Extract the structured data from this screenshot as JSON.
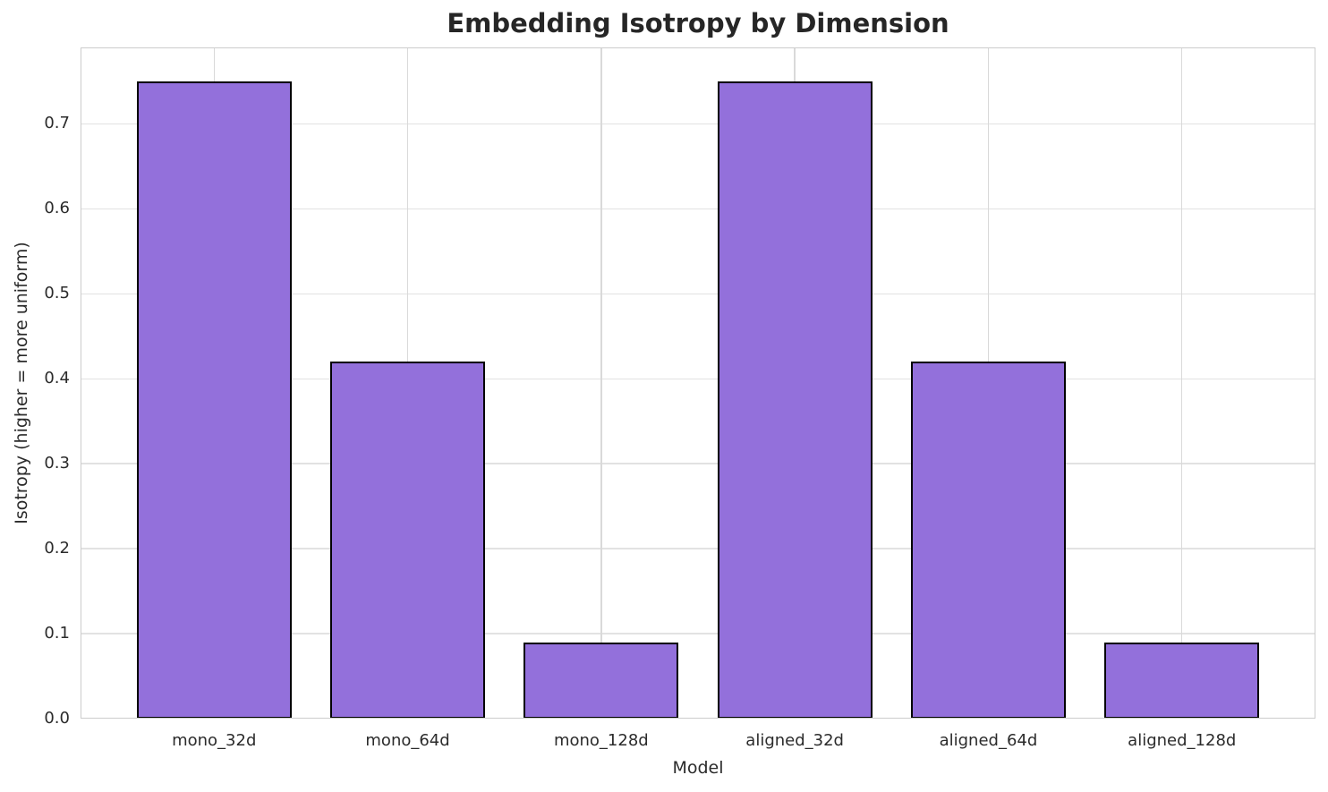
{
  "chart_data": {
    "type": "bar",
    "title": "Embedding Isotropy by Dimension",
    "xlabel": "Model",
    "ylabel": "Isotropy (higher = more uniform)",
    "categories": [
      "mono_32d",
      "mono_64d",
      "mono_128d",
      "aligned_32d",
      "aligned_64d",
      "aligned_128d"
    ],
    "values": [
      0.75,
      0.42,
      0.09,
      0.75,
      0.42,
      0.09
    ],
    "ylim": [
      0,
      0.79
    ],
    "yticks": [
      0.0,
      0.1,
      0.2,
      0.3,
      0.4,
      0.5,
      0.6,
      0.7
    ],
    "ytick_format_decimals": 1,
    "grid": true,
    "legend": false,
    "colors": {
      "bar_fill": "#9370DB",
      "bar_edge": "#000000",
      "grid_h": "#e2e2e2",
      "grid_v": "#d9d9d9",
      "spine": "#cccccc",
      "title_text": "#262626",
      "axis_text": "#2b2b2b",
      "background": "#ffffff"
    }
  }
}
